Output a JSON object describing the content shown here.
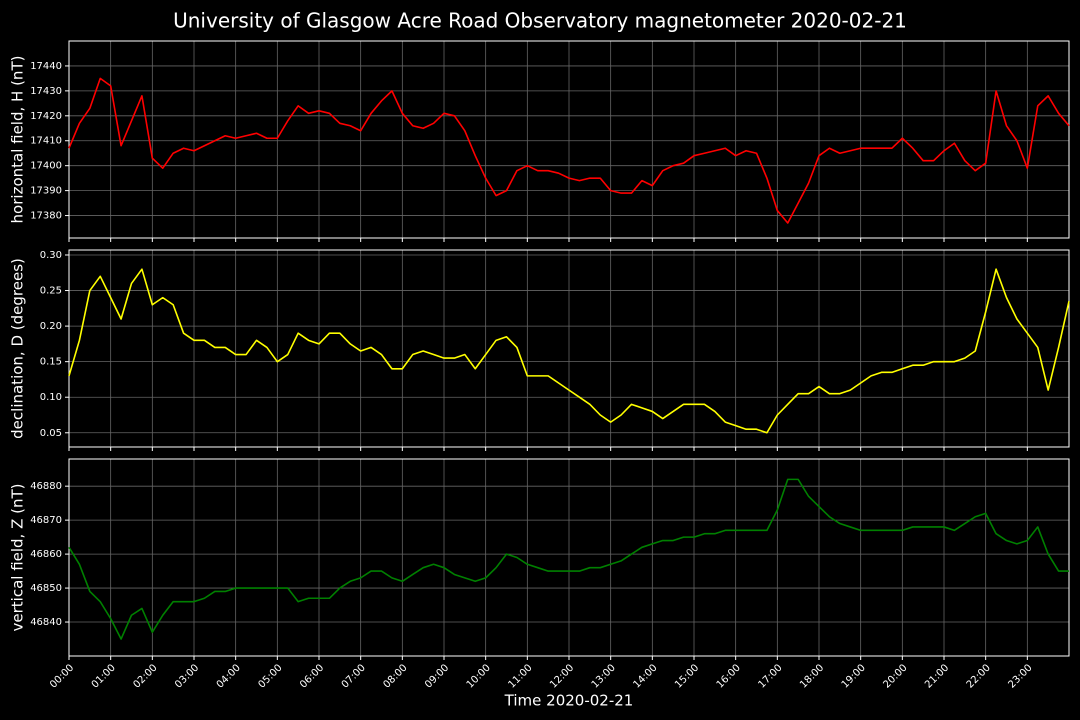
{
  "title": "University of Glasgow Acre Road Observatory magnetometer 2020-02-21",
  "chart_data": [
    {
      "type": "line",
      "ylabel": "horizontal field, H (nT)",
      "grid": true,
      "xlim": [
        0,
        24
      ],
      "ylim": [
        17371,
        17450
      ],
      "yticks": [
        17380,
        17390,
        17400,
        17410,
        17420,
        17430,
        17440
      ],
      "x": [
        0,
        0.25,
        0.5,
        0.75,
        1,
        1.25,
        1.5,
        1.75,
        2,
        2.25,
        2.5,
        2.75,
        3,
        3.25,
        3.5,
        3.75,
        4,
        4.25,
        4.5,
        4.75,
        5,
        5.25,
        5.5,
        5.75,
        6,
        6.25,
        6.5,
        6.75,
        7,
        7.25,
        7.5,
        7.75,
        8,
        8.25,
        8.5,
        8.75,
        9,
        9.25,
        9.5,
        9.75,
        10,
        10.25,
        10.5,
        10.75,
        11,
        11.25,
        11.5,
        11.75,
        12,
        12.25,
        12.5,
        12.75,
        13,
        13.25,
        13.5,
        13.75,
        14,
        14.25,
        14.5,
        14.75,
        15,
        15.25,
        15.5,
        15.75,
        16,
        16.25,
        16.5,
        16.75,
        17,
        17.25,
        17.5,
        17.75,
        18,
        18.25,
        18.5,
        18.75,
        19,
        19.25,
        19.5,
        19.75,
        20,
        20.25,
        20.5,
        20.75,
        21,
        21.25,
        21.5,
        21.75,
        22,
        22.25,
        22.5,
        22.75,
        23,
        23.25,
        23.5,
        23.75,
        24
      ],
      "series": [
        {
          "color": "#ff0000",
          "values": [
            17407,
            17417,
            17423,
            17435,
            17432,
            17408,
            17418,
            17428,
            17403,
            17399,
            17405,
            17407,
            17406,
            17408,
            17410,
            17412,
            17411,
            17412,
            17413,
            17411,
            17411,
            17418,
            17424,
            17421,
            17422,
            17421,
            17417,
            17416,
            17414,
            17421,
            17426,
            17430,
            17421,
            17416,
            17415,
            17417,
            17421,
            17420,
            17414,
            17404,
            17395,
            17388,
            17390,
            17398,
            17400,
            17398,
            17398,
            17397,
            17395,
            17394,
            17395,
            17395,
            17390,
            17389,
            17389,
            17394,
            17392,
            17398,
            17400,
            17401,
            17404,
            17405,
            17406,
            17407,
            17404,
            17406,
            17405,
            17395,
            17382,
            17377,
            17385,
            17393,
            17404,
            17407,
            17405,
            17406,
            17407,
            17407,
            17407,
            17407,
            17411,
            17407,
            17402,
            17402,
            17406,
            17409,
            17402,
            17398,
            17401,
            17430,
            17416,
            17410,
            17399,
            17424,
            17428,
            17421,
            17416
          ]
        }
      ]
    },
    {
      "type": "line",
      "ylabel": "declination, D (degrees)",
      "grid": true,
      "xlim": [
        0,
        24
      ],
      "ylim": [
        0.03,
        0.307
      ],
      "yticks": [
        0.05,
        {
          "value": 0.1,
          "label": "0.10"
        },
        0.15,
        {
          "value": 0.2,
          "label": "0.20"
        },
        0.25,
        {
          "value": 0.3,
          "label": "0.30"
        }
      ],
      "x": [
        0,
        0.25,
        0.5,
        0.75,
        1,
        1.25,
        1.5,
        1.75,
        2,
        2.25,
        2.5,
        2.75,
        3,
        3.25,
        3.5,
        3.75,
        4,
        4.25,
        4.5,
        4.75,
        5,
        5.25,
        5.5,
        5.75,
        6,
        6.25,
        6.5,
        6.75,
        7,
        7.25,
        7.5,
        7.75,
        8,
        8.25,
        8.5,
        8.75,
        9,
        9.25,
        9.5,
        9.75,
        10,
        10.25,
        10.5,
        10.75,
        11,
        11.25,
        11.5,
        11.75,
        12,
        12.25,
        12.5,
        12.75,
        13,
        13.25,
        13.5,
        13.75,
        14,
        14.25,
        14.5,
        14.75,
        15,
        15.25,
        15.5,
        15.75,
        16,
        16.25,
        16.5,
        16.75,
        17,
        17.25,
        17.5,
        17.75,
        18,
        18.25,
        18.5,
        18.75,
        19,
        19.25,
        19.5,
        19.75,
        20,
        20.25,
        20.5,
        20.75,
        21,
        21.25,
        21.5,
        21.75,
        22,
        22.25,
        22.5,
        22.75,
        23,
        23.25,
        23.5,
        23.75,
        24
      ],
      "series": [
        {
          "color": "#ffff00",
          "values": [
            0.13,
            0.18,
            0.25,
            0.27,
            0.24,
            0.21,
            0.26,
            0.28,
            0.23,
            0.24,
            0.23,
            0.19,
            0.18,
            0.18,
            0.17,
            0.17,
            0.16,
            0.16,
            0.18,
            0.17,
            0.15,
            0.16,
            0.19,
            0.18,
            0.175,
            0.19,
            0.19,
            0.175,
            0.165,
            0.17,
            0.16,
            0.14,
            0.14,
            0.16,
            0.165,
            0.16,
            0.155,
            0.155,
            0.16,
            0.14,
            0.16,
            0.18,
            0.185,
            0.17,
            0.13,
            0.13,
            0.13,
            0.12,
            0.11,
            0.1,
            0.09,
            0.075,
            0.065,
            0.075,
            0.09,
            0.085,
            0.08,
            0.07,
            0.08,
            0.09,
            0.09,
            0.09,
            0.08,
            0.065,
            0.06,
            0.055,
            0.055,
            0.05,
            0.075,
            0.09,
            0.105,
            0.105,
            0.115,
            0.105,
            0.105,
            0.11,
            0.12,
            0.13,
            0.135,
            0.135,
            0.14,
            0.145,
            0.145,
            0.15,
            0.15,
            0.15,
            0.155,
            0.165,
            0.22,
            0.28,
            0.24,
            0.21,
            0.19,
            0.17,
            0.11,
            0.17,
            0.235
          ]
        }
      ]
    },
    {
      "type": "line",
      "ylabel": "vertical field, Z (nT)",
      "xlabel": "Time 2020-02-21",
      "grid": true,
      "xlim": [
        0,
        24
      ],
      "ylim": [
        46830,
        46888
      ],
      "yticks": [
        46840,
        46850,
        46860,
        46870,
        46880
      ],
      "xticks": [
        {
          "value": 0,
          "label": "00:00"
        },
        {
          "value": 1,
          "label": "01:00"
        },
        {
          "value": 2,
          "label": "02:00"
        },
        {
          "value": 3,
          "label": "03:00"
        },
        {
          "value": 4,
          "label": "04:00"
        },
        {
          "value": 5,
          "label": "05:00"
        },
        {
          "value": 6,
          "label": "06:00"
        },
        {
          "value": 7,
          "label": "07:00"
        },
        {
          "value": 8,
          "label": "08:00"
        },
        {
          "value": 9,
          "label": "09:00"
        },
        {
          "value": 10,
          "label": "10:00"
        },
        {
          "value": 11,
          "label": "11:00"
        },
        {
          "value": 12,
          "label": "12:00"
        },
        {
          "value": 13,
          "label": "13:00"
        },
        {
          "value": 14,
          "label": "14:00"
        },
        {
          "value": 15,
          "label": "15:00"
        },
        {
          "value": 16,
          "label": "16:00"
        },
        {
          "value": 17,
          "label": "17:00"
        },
        {
          "value": 18,
          "label": "18:00"
        },
        {
          "value": 19,
          "label": "19:00"
        },
        {
          "value": 20,
          "label": "20:00"
        },
        {
          "value": 21,
          "label": "21:00"
        },
        {
          "value": 22,
          "label": "22:00"
        },
        {
          "value": 23,
          "label": "23:00"
        }
      ],
      "x": [
        0,
        0.25,
        0.5,
        0.75,
        1,
        1.25,
        1.5,
        1.75,
        2,
        2.25,
        2.5,
        2.75,
        3,
        3.25,
        3.5,
        3.75,
        4,
        4.25,
        4.5,
        4.75,
        5,
        5.25,
        5.5,
        5.75,
        6,
        6.25,
        6.5,
        6.75,
        7,
        7.25,
        7.5,
        7.75,
        8,
        8.25,
        8.5,
        8.75,
        9,
        9.25,
        9.5,
        9.75,
        10,
        10.25,
        10.5,
        10.75,
        11,
        11.25,
        11.5,
        11.75,
        12,
        12.25,
        12.5,
        12.75,
        13,
        13.25,
        13.5,
        13.75,
        14,
        14.25,
        14.5,
        14.75,
        15,
        15.25,
        15.5,
        15.75,
        16,
        16.25,
        16.5,
        16.75,
        17,
        17.25,
        17.5,
        17.75,
        18,
        18.25,
        18.5,
        18.75,
        19,
        19.25,
        19.5,
        19.75,
        20,
        20.25,
        20.5,
        20.75,
        21,
        21.25,
        21.5,
        21.75,
        22,
        22.25,
        22.5,
        22.75,
        23,
        23.25,
        23.5,
        23.75,
        24
      ],
      "series": [
        {
          "color": "#008000",
          "values": [
            46862,
            46857,
            46849,
            46846,
            46841,
            46835,
            46842,
            46844,
            46837,
            46842,
            46846,
            46846,
            46846,
            46847,
            46849,
            46849,
            46850,
            46850,
            46850,
            46850,
            46850,
            46850,
            46846,
            46847,
            46847,
            46847,
            46850,
            46852,
            46853,
            46855,
            46855,
            46853,
            46852,
            46854,
            46856,
            46857,
            46856,
            46854,
            46853,
            46852,
            46853,
            46856,
            46860,
            46859,
            46857,
            46856,
            46855,
            46855,
            46855,
            46855,
            46856,
            46856,
            46857,
            46858,
            46860,
            46862,
            46863,
            46864,
            46864,
            46865,
            46865,
            46866,
            46866,
            46867,
            46867,
            46867,
            46867,
            46867,
            46873,
            46882,
            46882,
            46877,
            46874,
            46871,
            46869,
            46868,
            46867,
            46867,
            46867,
            46867,
            46867,
            46868,
            46868,
            46868,
            46868,
            46867,
            46869,
            46871,
            46872,
            46866,
            46864,
            46863,
            46864,
            46868,
            46860,
            46855,
            46855
          ]
        }
      ]
    }
  ]
}
